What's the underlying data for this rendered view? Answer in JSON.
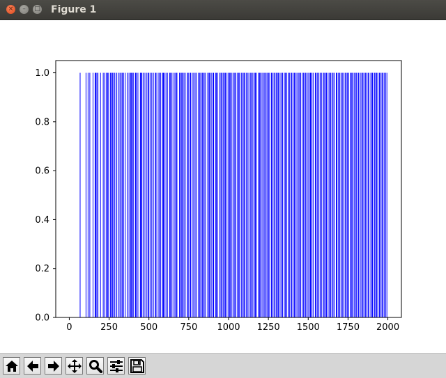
{
  "window": {
    "title": "Figure 1"
  },
  "toolbar": {
    "buttons": [
      {
        "icon": "home-icon"
      },
      {
        "icon": "back-arrow-icon"
      },
      {
        "icon": "forward-arrow-icon"
      },
      {
        "icon": "pan-icon"
      },
      {
        "icon": "zoom-icon"
      },
      {
        "icon": "configure-subplots-icon"
      },
      {
        "icon": "save-icon"
      }
    ]
  },
  "chart_data": {
    "type": "bar",
    "title": "",
    "xlabel": "",
    "ylabel": "",
    "xlim": [
      -85,
      2085
    ],
    "ylim": [
      0,
      1.05
    ],
    "xticks": [
      0,
      250,
      500,
      750,
      1000,
      1250,
      1500,
      1750,
      2000
    ],
    "yticks": [
      0.0,
      0.2,
      0.4,
      0.6,
      0.8,
      1.0
    ],
    "bar_color": "#0000ff",
    "bar_width": 1,
    "grid": false,
    "x": [
      68,
      105,
      118,
      129,
      149,
      162,
      166,
      173,
      180,
      196,
      213,
      223,
      232,
      241,
      247,
      259,
      263,
      271,
      279,
      286,
      298,
      309,
      318,
      326,
      334,
      340,
      351,
      364,
      375,
      385,
      390,
      398,
      404,
      416,
      421,
      431,
      446,
      450,
      456,
      464,
      475,
      487,
      496,
      500,
      510,
      518,
      528,
      540,
      545,
      558,
      565,
      574,
      586,
      591,
      597,
      607,
      616,
      630,
      636,
      641,
      651,
      663,
      671,
      676,
      692,
      699,
      706,
      711,
      720,
      728,
      741,
      747,
      758,
      762,
      772,
      781,
      790,
      798,
      812,
      817,
      825,
      834,
      839,
      847,
      855,
      869,
      877,
      882,
      891,
      902,
      906,
      918,
      923,
      931,
      943,
      952,
      958,
      966,
      974,
      980,
      990,
      998,
      1007,
      1012,
      1021,
      1033,
      1039,
      1046,
      1057,
      1062,
      1069,
      1080,
      1088,
      1096,
      1101,
      1111,
      1121,
      1128,
      1139,
      1146,
      1153,
      1165,
      1168,
      1174,
      1188,
      1194,
      1200,
      1210,
      1219,
      1227,
      1235,
      1242,
      1251,
      1258,
      1269,
      1276,
      1285,
      1292,
      1301,
      1306,
      1313,
      1323,
      1330,
      1339,
      1350,
      1357,
      1365,
      1374,
      1382,
      1392,
      1397,
      1406,
      1414,
      1418,
      1429,
      1438,
      1446,
      1452,
      1462,
      1471,
      1480,
      1485,
      1494,
      1503,
      1512,
      1516,
      1524,
      1533,
      1545,
      1550,
      1559,
      1567,
      1575,
      1583,
      1594,
      1600,
      1609,
      1615,
      1625,
      1633,
      1641,
      1649,
      1656,
      1664,
      1676,
      1681,
      1690,
      1698,
      1706,
      1714,
      1723,
      1732,
      1739,
      1747,
      1753,
      1764,
      1771,
      1777,
      1788,
      1795,
      1802,
      1813,
      1817,
      1827,
      1836,
      1843,
      1850,
      1859,
      1867,
      1876,
      1881,
      1893,
      1901,
      1905,
      1916,
      1923,
      1930,
      1937,
      1947,
      1955,
      1963,
      1969,
      1977,
      1986,
      1994
    ],
    "y_all": 1.0
  }
}
